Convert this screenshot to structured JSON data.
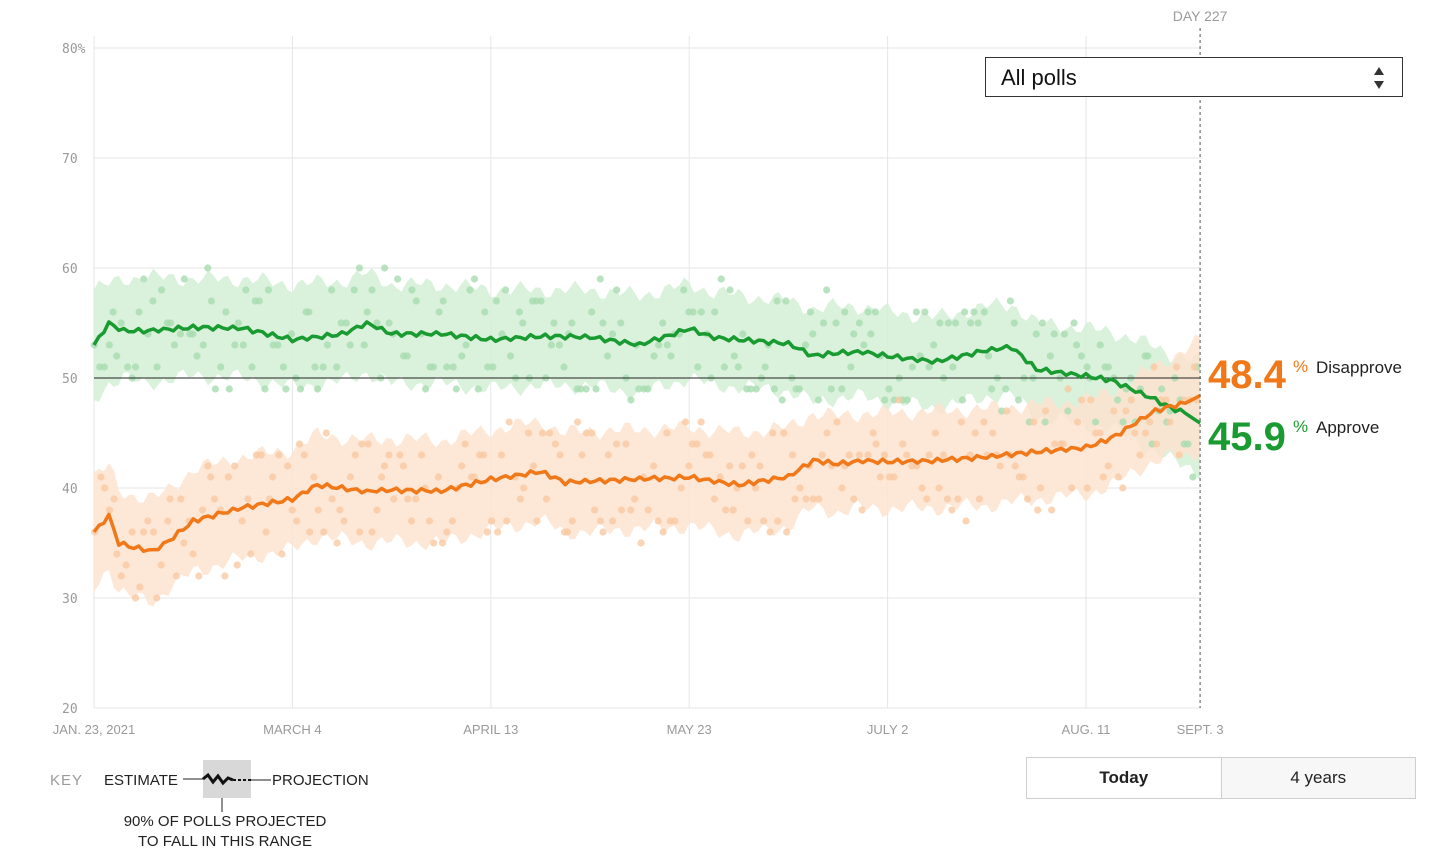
{
  "chart_data": {
    "type": "line",
    "title": "",
    "xlabel": "",
    "ylabel": "",
    "ylim": [
      20,
      80
    ],
    "yticks": [
      "80%",
      "70",
      "60",
      "50",
      "40",
      "30",
      "20"
    ],
    "x_tick_labels": [
      "JAN. 23, 2021",
      "MARCH 4",
      "APRIL 13",
      "MAY 23",
      "JULY 2",
      "AUG. 11",
      "SEPT. 3"
    ],
    "x_tick_days": [
      0,
      40,
      80,
      120,
      160,
      200,
      223
    ],
    "grid": true,
    "marker_label": "DAY 227",
    "series": [
      {
        "name": "Approve",
        "color": "#1a9b32",
        "current_value": "45.9",
        "x_days": [
          0,
          3,
          6,
          10,
          20,
          30,
          40,
          50,
          55,
          60,
          70,
          80,
          90,
          100,
          110,
          120,
          125,
          130,
          140,
          145,
          150,
          155,
          160,
          170,
          180,
          185,
          190,
          200,
          205,
          208,
          211,
          214,
          217,
          220,
          223
        ],
        "values": [
          53.0,
          55.0,
          54.3,
          54.3,
          54.6,
          54.5,
          53.5,
          54.0,
          55.0,
          54.0,
          54.0,
          53.5,
          53.8,
          53.7,
          53.0,
          54.5,
          53.7,
          53.5,
          53.1,
          52.0,
          52.3,
          52.4,
          52.0,
          51.5,
          52.5,
          52.8,
          50.8,
          50.2,
          49.8,
          49.2,
          48.6,
          48.0,
          47.3,
          46.8,
          45.9
        ],
        "band_upper": [
          58.0,
          58.5,
          59.0,
          59.2,
          59.0,
          59.0,
          58.5,
          58.8,
          59.5,
          58.5,
          58.5,
          58.0,
          58.0,
          58.0,
          57.5,
          58.5,
          57.8,
          57.5,
          57.0,
          56.3,
          56.5,
          56.5,
          56.0,
          55.5,
          56.5,
          56.7,
          55.0,
          54.5,
          54.2,
          53.8,
          53.3,
          52.8,
          52.2,
          51.8,
          51.5
        ],
        "band_lower": [
          48.0,
          49.5,
          50.0,
          49.5,
          50.2,
          50.0,
          49.2,
          49.7,
          50.5,
          49.5,
          49.5,
          49.0,
          49.3,
          49.3,
          48.6,
          50.0,
          49.3,
          49.2,
          48.8,
          47.8,
          48.2,
          48.3,
          47.8,
          47.3,
          48.3,
          48.5,
          46.5,
          45.8,
          45.4,
          44.8,
          44.0,
          43.3,
          42.5,
          42.0,
          41.5
        ]
      },
      {
        "name": "Disapprove",
        "color": "#f07818",
        "current_value": "48.4",
        "x_days": [
          0,
          3,
          5,
          8,
          12,
          15,
          20,
          30,
          40,
          45,
          50,
          55,
          60,
          70,
          80,
          90,
          95,
          100,
          110,
          120,
          130,
          140,
          145,
          150,
          155,
          160,
          170,
          180,
          190,
          200,
          205,
          208,
          211,
          214,
          217,
          220,
          223
        ],
        "values": [
          36.0,
          37.5,
          35.0,
          34.6,
          34.3,
          35.2,
          37.0,
          38.2,
          39.0,
          40.3,
          40.0,
          39.7,
          39.8,
          39.7,
          40.8,
          41.5,
          40.5,
          40.6,
          40.8,
          41.0,
          40.3,
          41.0,
          42.5,
          42.2,
          42.5,
          42.4,
          42.5,
          42.8,
          43.3,
          43.7,
          44.5,
          45.3,
          46.2,
          47.0,
          47.4,
          47.7,
          48.4
        ],
        "band_upper": [
          41.0,
          42.0,
          39.8,
          39.3,
          39.0,
          39.8,
          41.7,
          42.8,
          43.5,
          44.8,
          44.6,
          44.3,
          44.5,
          44.3,
          45.3,
          46.0,
          45.0,
          45.2,
          45.3,
          45.5,
          45.0,
          45.5,
          46.8,
          46.5,
          46.8,
          46.8,
          47.0,
          47.2,
          47.6,
          48.0,
          48.8,
          49.5,
          50.3,
          51.0,
          51.8,
          52.6,
          53.4
        ],
        "band_lower": [
          31.0,
          32.8,
          30.5,
          30.0,
          29.8,
          30.8,
          32.4,
          33.6,
          34.4,
          35.6,
          35.3,
          35.0,
          35.1,
          35.0,
          36.2,
          37.0,
          36.0,
          36.0,
          36.3,
          36.5,
          35.7,
          36.5,
          38.2,
          37.8,
          38.2,
          38.1,
          38.2,
          38.4,
          39.0,
          39.4,
          40.2,
          41.0,
          41.8,
          42.5,
          42.8,
          42.8,
          43.4
        ]
      }
    ]
  },
  "dropdown": {
    "selected": "All polls"
  },
  "labels": {
    "disapprove_value": "48.4",
    "approve_value": "45.9",
    "percent": "%",
    "disapprove_label": "Disapprove",
    "approve_label": "Approve"
  },
  "key": {
    "label": "KEY",
    "estimate": "ESTIMATE",
    "projection": "PROJECTION",
    "range_line1": "90% OF POLLS PROJECTED",
    "range_line2": "TO FALL IN THIS RANGE"
  },
  "toggle": {
    "today": "Today",
    "years": "4 years"
  },
  "colors": {
    "approve": "#1a9b32",
    "disapprove": "#f07818",
    "approve_band": "#d3eed6",
    "disapprove_band": "#fde3cf",
    "approve_dot": "#a8dcb0",
    "disapprove_dot": "#f9c9a3"
  }
}
